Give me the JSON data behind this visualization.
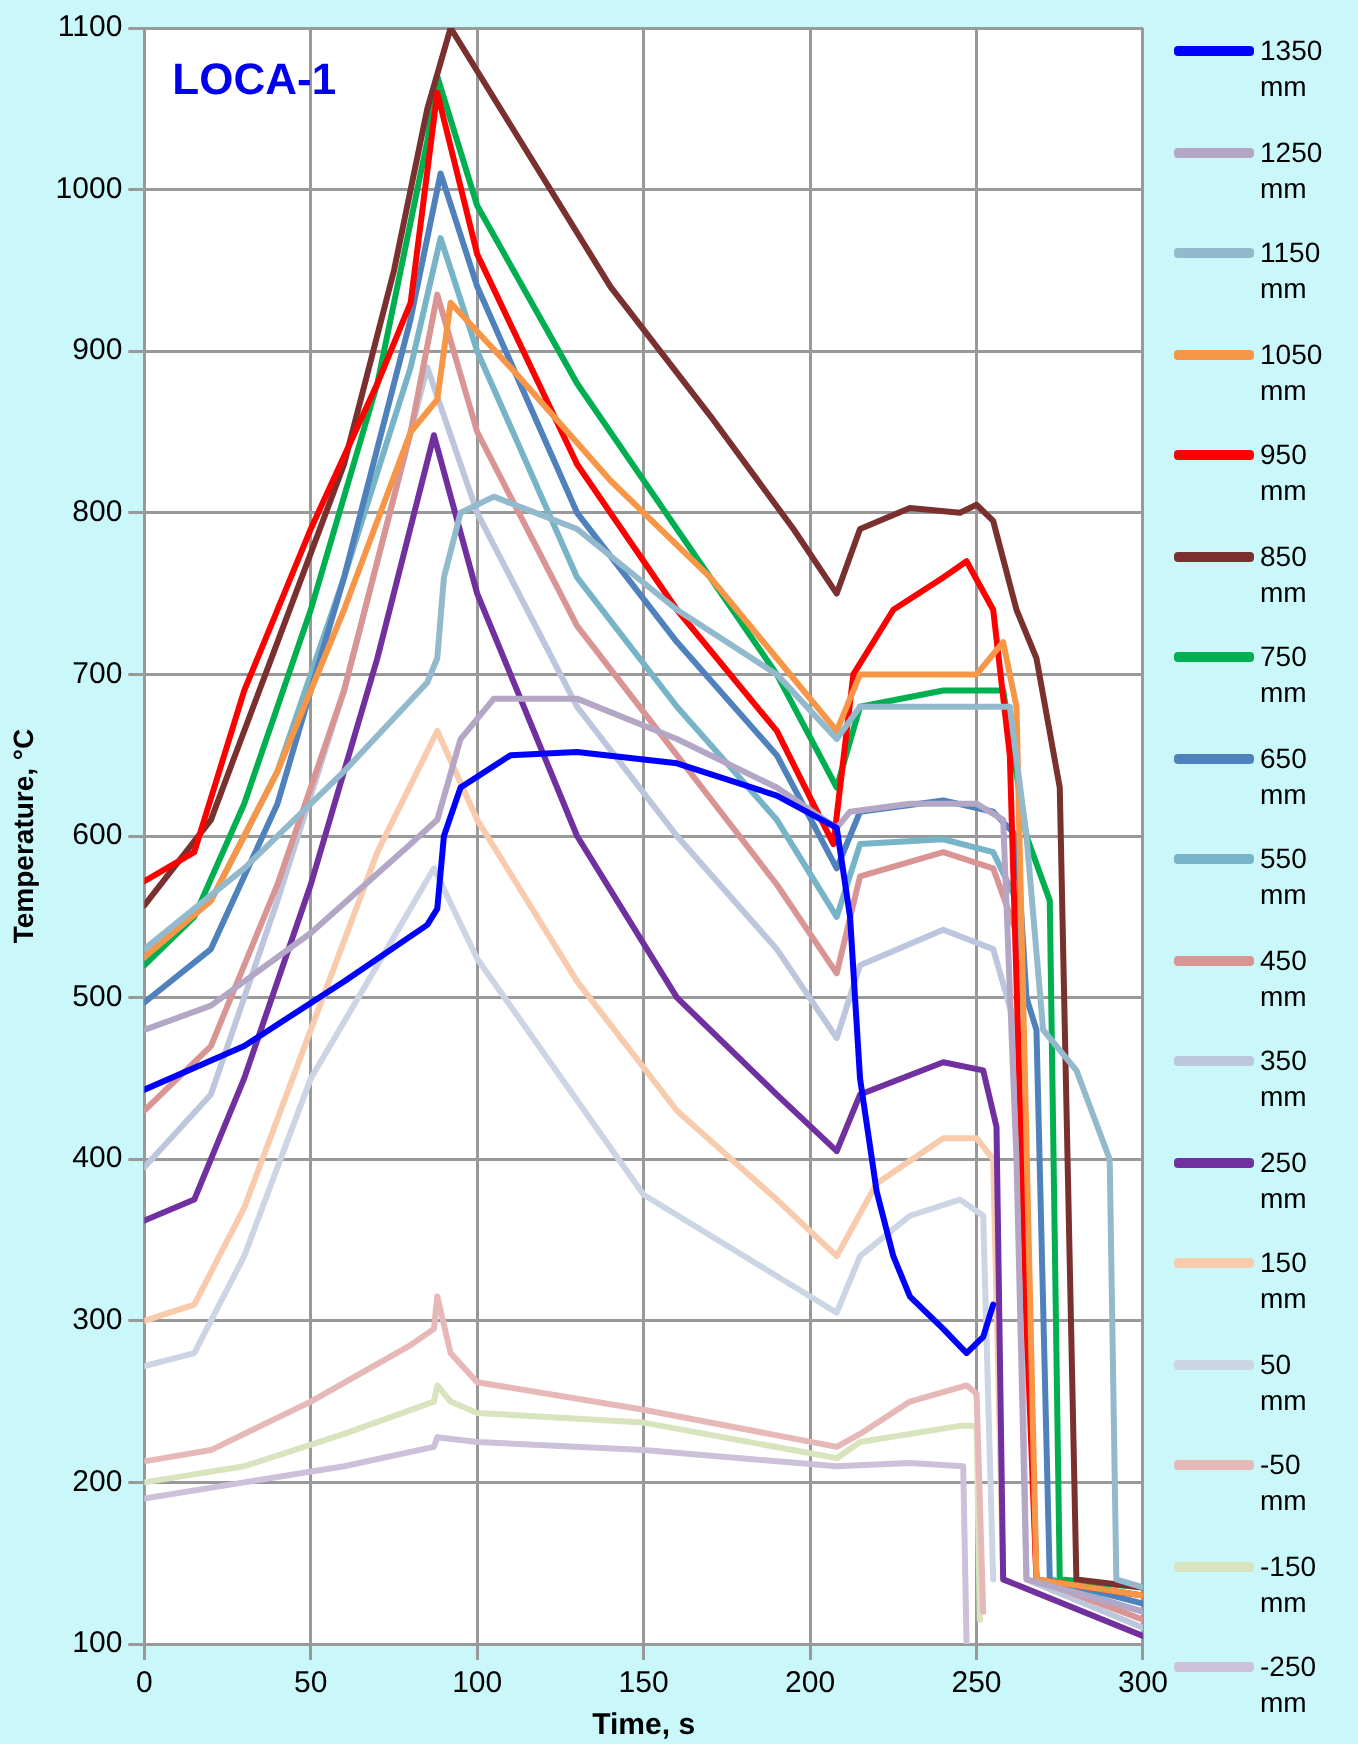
{
  "chart_data": {
    "type": "line",
    "title": "LOCA-1",
    "xlabel": "Time, s",
    "ylabel": "Temperature, °C",
    "xlim": [
      0,
      300
    ],
    "xticks": [
      0,
      50,
      100,
      150,
      200,
      250,
      300
    ],
    "ylim": [
      100,
      1100
    ],
    "yticks": [
      100,
      200,
      300,
      400,
      500,
      600,
      700,
      800,
      900,
      1000,
      1100
    ],
    "grid": true,
    "legend": "right",
    "marker": "none",
    "line_style": "solid",
    "series": [
      {
        "name": "1350 mm",
        "color": "#0000ff",
        "x": [
          0,
          30,
          60,
          85,
          88,
          90,
          95,
          110,
          130,
          160,
          190,
          208,
          212,
          215,
          220,
          225,
          230,
          240,
          247,
          252,
          255
        ],
        "values": [
          443,
          470,
          510,
          545,
          555,
          600,
          630,
          650,
          652,
          645,
          625,
          605,
          550,
          450,
          380,
          340,
          315,
          295,
          280,
          290,
          310
        ]
      },
      {
        "name": "1250 mm",
        "color": "#b4a7c6",
        "x": [
          0,
          20,
          50,
          80,
          88,
          95,
          105,
          130,
          160,
          190,
          208,
          212,
          230,
          250,
          258,
          262,
          265,
          300
        ],
        "values": [
          480,
          495,
          540,
          595,
          610,
          660,
          685,
          685,
          660,
          630,
          605,
          615,
          620,
          620,
          610,
          400,
          140,
          120
        ]
      },
      {
        "name": "1150 mm",
        "color": "#93b9cd",
        "x": [
          0,
          30,
          60,
          85,
          88,
          90,
          95,
          105,
          130,
          160,
          190,
          208,
          215,
          250,
          260,
          265,
          270,
          280,
          290,
          292,
          300
        ],
        "values": [
          530,
          580,
          640,
          695,
          710,
          760,
          800,
          810,
          790,
          740,
          700,
          660,
          680,
          680,
          680,
          600,
          480,
          455,
          400,
          140,
          135
        ]
      },
      {
        "name": "1050 mm",
        "color": "#f79646",
        "x": [
          0,
          20,
          40,
          60,
          80,
          88,
          92,
          110,
          140,
          170,
          190,
          208,
          215,
          240,
          250,
          258,
          262,
          268,
          300
        ],
        "values": [
          525,
          560,
          640,
          740,
          850,
          870,
          930,
          890,
          820,
          760,
          710,
          665,
          700,
          700,
          700,
          720,
          680,
          140,
          130
        ]
      },
      {
        "name": "950 mm",
        "color": "#ff0000",
        "x": [
          0,
          15,
          30,
          50,
          70,
          80,
          88,
          100,
          130,
          160,
          190,
          207,
          213,
          225,
          240,
          247,
          255,
          260,
          265,
          268,
          300
        ],
        "values": [
          572,
          590,
          690,
          790,
          880,
          930,
          1060,
          960,
          830,
          740,
          665,
          595,
          700,
          740,
          760,
          770,
          740,
          650,
          300,
          140,
          130
        ]
      },
      {
        "name": "850 mm",
        "color": "#7b3030",
        "x": [
          0,
          20,
          40,
          60,
          75,
          85,
          92,
          110,
          140,
          170,
          195,
          208,
          215,
          230,
          245,
          250,
          255,
          262,
          268,
          275,
          280,
          300
        ],
        "values": [
          557,
          610,
          720,
          830,
          950,
          1050,
          1100,
          1040,
          940,
          860,
          790,
          750,
          790,
          803,
          800,
          805,
          795,
          740,
          710,
          630,
          140,
          135
        ]
      },
      {
        "name": "750 mm",
        "color": "#00b050",
        "x": [
          0,
          15,
          30,
          50,
          70,
          85,
          88,
          100,
          130,
          160,
          190,
          208,
          215,
          240,
          258,
          265,
          272,
          275,
          300
        ],
        "values": [
          520,
          550,
          620,
          740,
          880,
          1030,
          1070,
          990,
          880,
          790,
          700,
          630,
          680,
          690,
          690,
          600,
          560,
          140,
          135
        ]
      },
      {
        "name": "650 mm",
        "color": "#4f81bd",
        "x": [
          0,
          20,
          40,
          60,
          80,
          89,
          100,
          130,
          160,
          190,
          208,
          215,
          240,
          255,
          262,
          265,
          268,
          272,
          300
        ],
        "values": [
          497,
          530,
          620,
          760,
          920,
          1010,
          940,
          800,
          720,
          650,
          580,
          615,
          622,
          615,
          600,
          500,
          480,
          140,
          125
        ]
      },
      {
        "name": "550 mm",
        "color": "#78b4c8",
        "x": [
          0,
          20,
          40,
          60,
          80,
          89,
          100,
          130,
          160,
          190,
          208,
          215,
          240,
          255,
          262,
          268,
          300
        ],
        "values": [
          525,
          560,
          640,
          760,
          890,
          970,
          900,
          760,
          680,
          610,
          550,
          595,
          598,
          590,
          560,
          140,
          120
        ]
      },
      {
        "name": "450 mm",
        "color": "#d99594",
        "x": [
          0,
          20,
          40,
          60,
          80,
          88,
          100,
          130,
          160,
          190,
          208,
          215,
          240,
          255,
          262,
          268,
          300
        ],
        "values": [
          430,
          470,
          570,
          690,
          850,
          935,
          850,
          730,
          650,
          570,
          515,
          575,
          590,
          580,
          540,
          140,
          115
        ]
      },
      {
        "name": "350 mm",
        "color": "#bcc6dc",
        "x": [
          0,
          20,
          40,
          60,
          85,
          100,
          130,
          160,
          190,
          208,
          215,
          240,
          255,
          262,
          265,
          300
        ],
        "values": [
          395,
          440,
          560,
          690,
          890,
          800,
          680,
          600,
          530,
          475,
          520,
          542,
          530,
          480,
          140,
          110
        ]
      },
      {
        "name": "250 mm",
        "color": "#7030a0",
        "x": [
          0,
          15,
          30,
          50,
          70,
          87,
          100,
          130,
          160,
          190,
          208,
          215,
          240,
          252,
          256,
          258,
          300
        ],
        "values": [
          362,
          375,
          450,
          570,
          710,
          848,
          750,
          600,
          500,
          440,
          405,
          440,
          460,
          455,
          420,
          140,
          105
        ]
      },
      {
        "name": "150 mm",
        "color": "#f8cbad",
        "x": [
          0,
          15,
          30,
          50,
          70,
          88,
          100,
          130,
          160,
          190,
          208,
          220,
          240,
          250,
          255,
          258,
          300
        ],
        "values": [
          300,
          310,
          370,
          480,
          590,
          665,
          610,
          510,
          430,
          375,
          340,
          385,
          413,
          413,
          400,
          140,
          105
        ]
      },
      {
        "name": "50 mm",
        "color": "#ccd5e3",
        "x": [
          0,
          15,
          30,
          50,
          70,
          87,
          100,
          150,
          208,
          215,
          230,
          245,
          252,
          255
        ],
        "values": [
          272,
          280,
          340,
          450,
          520,
          580,
          524,
          378,
          305,
          340,
          365,
          375,
          365,
          140
        ]
      },
      {
        "name": "-50 mm",
        "color": "#e6b9b8",
        "x": [
          0,
          20,
          50,
          80,
          87,
          88,
          92,
          100,
          150,
          208,
          215,
          230,
          247,
          250,
          252
        ],
        "values": [
          213,
          220,
          250,
          285,
          295,
          315,
          280,
          262,
          245,
          222,
          230,
          250,
          260,
          255,
          120
        ]
      },
      {
        "name": "-150 mm",
        "color": "#d7e4bd",
        "x": [
          0,
          30,
          60,
          87,
          88,
          92,
          100,
          150,
          208,
          215,
          245,
          250,
          251
        ],
        "values": [
          200,
          210,
          230,
          250,
          260,
          250,
          243,
          237,
          215,
          225,
          235,
          235,
          115
        ]
      },
      {
        "name": "-250 mm",
        "color": "#ccc0da",
        "x": [
          0,
          30,
          60,
          87,
          88,
          100,
          150,
          208,
          230,
          246,
          247
        ],
        "values": [
          190,
          200,
          210,
          222,
          228,
          225,
          220,
          210,
          212,
          210,
          100
        ]
      }
    ]
  }
}
